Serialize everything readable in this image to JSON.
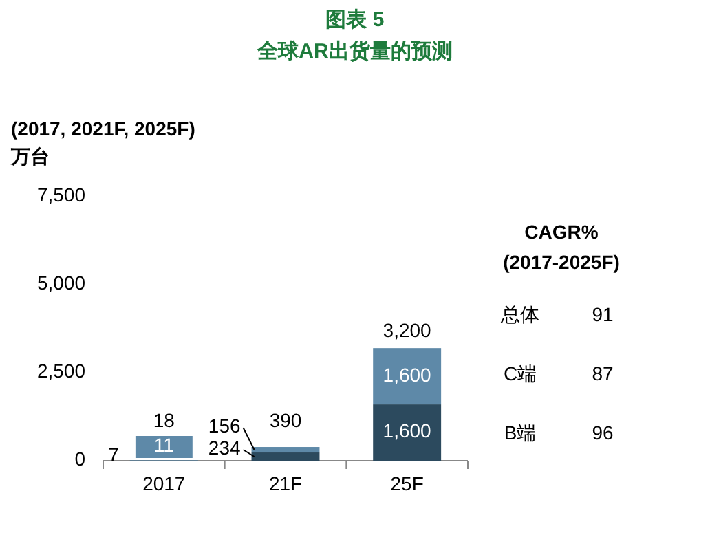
{
  "chart_data": {
    "type": "bar",
    "title": "图表 5",
    "subtitle": "全球AR出货量的预测",
    "ylabel": "万台",
    "stacked": true,
    "categories": [
      "2017",
      "21F",
      "25F"
    ],
    "series": [
      {
        "name": "B端",
        "color": "#2c4a5e",
        "values": [
          7,
          234,
          1600
        ],
        "value_labels": [
          "7",
          "234",
          "1,600"
        ]
      },
      {
        "name": "C端",
        "color": "#5e89a8",
        "values": [
          11,
          156,
          1600
        ],
        "value_labels": [
          "11",
          "156",
          "1,600"
        ]
      }
    ],
    "totals": [
      "18",
      "390",
      "3,200"
    ],
    "ylim": [
      0,
      7500
    ],
    "yticks": [
      0,
      {
        "value": 2500,
        "label": "2,500"
      },
      {
        "value": 5000,
        "label": "5,000"
      },
      {
        "value": 7500,
        "label": "7,500"
      }
    ],
    "annotations": [
      "(2017, 2021F, 2025F)",
      "CAGR%",
      "(2017-2025F)",
      "总体",
      "91",
      "87",
      "96"
    ]
  }
}
